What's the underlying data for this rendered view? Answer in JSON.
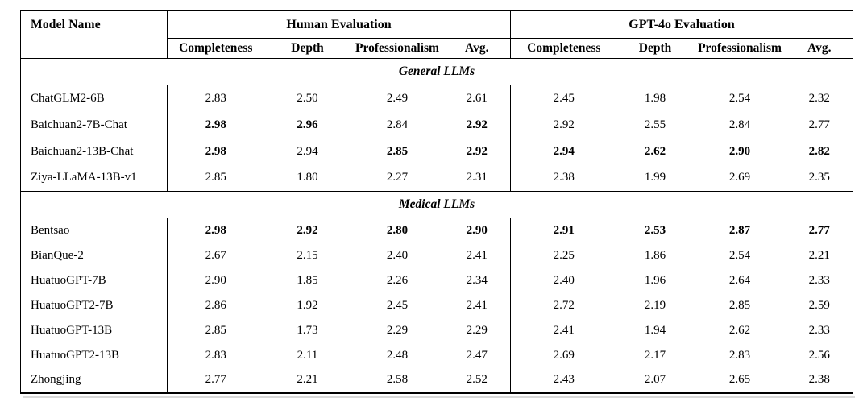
{
  "table": {
    "header": {
      "model_name": "Model Name",
      "groups": [
        {
          "label": "Human Evaluation",
          "columns": [
            "Completeness",
            "Depth",
            "Professionalism",
            "Avg."
          ]
        },
        {
          "label": "GPT-4o Evaluation",
          "columns": [
            "Completeness",
            "Depth",
            "Professionalism",
            "Avg."
          ]
        }
      ]
    },
    "sections": [
      {
        "label": "General LLMs",
        "rows": [
          {
            "model": "ChatGLM2-6B",
            "human": [
              {
                "v": "2.83",
                "b": false
              },
              {
                "v": "2.50",
                "b": false
              },
              {
                "v": "2.49",
                "b": false
              },
              {
                "v": "2.61",
                "b": false
              }
            ],
            "gpt4o": [
              {
                "v": "2.45",
                "b": false
              },
              {
                "v": "1.98",
                "b": false
              },
              {
                "v": "2.54",
                "b": false
              },
              {
                "v": "2.32",
                "b": false
              }
            ]
          },
          {
            "model": "Baichuan2-7B-Chat",
            "human": [
              {
                "v": "2.98",
                "b": true
              },
              {
                "v": "2.96",
                "b": true
              },
              {
                "v": "2.84",
                "b": false
              },
              {
                "v": "2.92",
                "b": true
              }
            ],
            "gpt4o": [
              {
                "v": "2.92",
                "b": false
              },
              {
                "v": "2.55",
                "b": false
              },
              {
                "v": "2.84",
                "b": false
              },
              {
                "v": "2.77",
                "b": false
              }
            ]
          },
          {
            "model": "Baichuan2-13B-Chat",
            "human": [
              {
                "v": "2.98",
                "b": true
              },
              {
                "v": "2.94",
                "b": false
              },
              {
                "v": "2.85",
                "b": true
              },
              {
                "v": "2.92",
                "b": true
              }
            ],
            "gpt4o": [
              {
                "v": "2.94",
                "b": true
              },
              {
                "v": "2.62",
                "b": true
              },
              {
                "v": "2.90",
                "b": true
              },
              {
                "v": "2.82",
                "b": true
              }
            ]
          },
          {
            "model": "Ziya-LLaMA-13B-v1",
            "human": [
              {
                "v": "2.85",
                "b": false
              },
              {
                "v": "1.80",
                "b": false
              },
              {
                "v": "2.27",
                "b": false
              },
              {
                "v": "2.31",
                "b": false
              }
            ],
            "gpt4o": [
              {
                "v": "2.38",
                "b": false
              },
              {
                "v": "1.99",
                "b": false
              },
              {
                "v": "2.69",
                "b": false
              },
              {
                "v": "2.35",
                "b": false
              }
            ]
          }
        ]
      },
      {
        "label": "Medical LLMs",
        "rows": [
          {
            "model": "Bentsao",
            "human": [
              {
                "v": "2.98",
                "b": true
              },
              {
                "v": "2.92",
                "b": true
              },
              {
                "v": "2.80",
                "b": true
              },
              {
                "v": "2.90",
                "b": true
              }
            ],
            "gpt4o": [
              {
                "v": "2.91",
                "b": true
              },
              {
                "v": "2.53",
                "b": true
              },
              {
                "v": "2.87",
                "b": true
              },
              {
                "v": "2.77",
                "b": true
              }
            ]
          },
          {
            "model": "BianQue-2",
            "human": [
              {
                "v": "2.67",
                "b": false
              },
              {
                "v": "2.15",
                "b": false
              },
              {
                "v": "2.40",
                "b": false
              },
              {
                "v": "2.41",
                "b": false
              }
            ],
            "gpt4o": [
              {
                "v": "2.25",
                "b": false
              },
              {
                "v": "1.86",
                "b": false
              },
              {
                "v": "2.54",
                "b": false
              },
              {
                "v": "2.21",
                "b": false
              }
            ]
          },
          {
            "model": "HuatuoGPT-7B",
            "human": [
              {
                "v": "2.90",
                "b": false
              },
              {
                "v": "1.85",
                "b": false
              },
              {
                "v": "2.26",
                "b": false
              },
              {
                "v": "2.34",
                "b": false
              }
            ],
            "gpt4o": [
              {
                "v": "2.40",
                "b": false
              },
              {
                "v": "1.96",
                "b": false
              },
              {
                "v": "2.64",
                "b": false
              },
              {
                "v": "2.33",
                "b": false
              }
            ]
          },
          {
            "model": "HuatuoGPT2-7B",
            "human": [
              {
                "v": "2.86",
                "b": false
              },
              {
                "v": "1.92",
                "b": false
              },
              {
                "v": "2.45",
                "b": false
              },
              {
                "v": "2.41",
                "b": false
              }
            ],
            "gpt4o": [
              {
                "v": "2.72",
                "b": false
              },
              {
                "v": "2.19",
                "b": false
              },
              {
                "v": "2.85",
                "b": false
              },
              {
                "v": "2.59",
                "b": false
              }
            ]
          },
          {
            "model": "HuatuoGPT-13B",
            "human": [
              {
                "v": "2.85",
                "b": false
              },
              {
                "v": "1.73",
                "b": false
              },
              {
                "v": "2.29",
                "b": false
              },
              {
                "v": "2.29",
                "b": false
              }
            ],
            "gpt4o": [
              {
                "v": "2.41",
                "b": false
              },
              {
                "v": "1.94",
                "b": false
              },
              {
                "v": "2.62",
                "b": false
              },
              {
                "v": "2.33",
                "b": false
              }
            ]
          },
          {
            "model": "HuatuoGPT2-13B",
            "human": [
              {
                "v": "2.83",
                "b": false
              },
              {
                "v": "2.11",
                "b": false
              },
              {
                "v": "2.48",
                "b": false
              },
              {
                "v": "2.47",
                "b": false
              }
            ],
            "gpt4o": [
              {
                "v": "2.69",
                "b": false
              },
              {
                "v": "2.17",
                "b": false
              },
              {
                "v": "2.83",
                "b": false
              },
              {
                "v": "2.56",
                "b": false
              }
            ]
          },
          {
            "model": "Zhongjing",
            "human": [
              {
                "v": "2.77",
                "b": false
              },
              {
                "v": "2.21",
                "b": false
              },
              {
                "v": "2.58",
                "b": false
              },
              {
                "v": "2.52",
                "b": false
              }
            ],
            "gpt4o": [
              {
                "v": "2.43",
                "b": false
              },
              {
                "v": "2.07",
                "b": false
              },
              {
                "v": "2.65",
                "b": false
              },
              {
                "v": "2.38",
                "b": false
              }
            ]
          }
        ]
      }
    ],
    "colors": {
      "text": "#000000",
      "border": "#000000",
      "background": "#ffffff"
    }
  }
}
